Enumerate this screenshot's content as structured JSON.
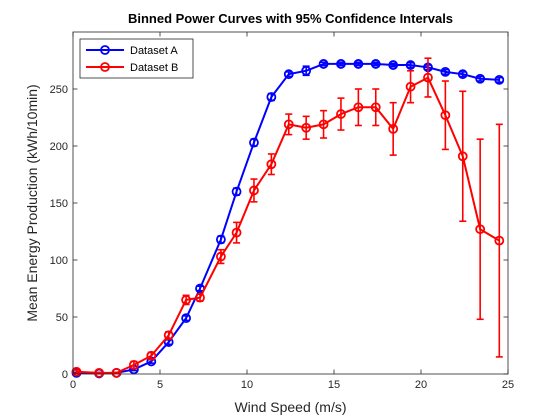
{
  "chart_data": {
    "type": "line",
    "title": "Binned Power Curves with 95% Confidence Intervals",
    "xlabel": "Wind Speed (m/s)",
    "ylabel": "Mean Energy Production (kWh/10min)",
    "xlim": [
      0,
      25
    ],
    "ylim": [
      0,
      300
    ],
    "xticks": [
      0,
      5,
      10,
      15,
      20,
      25
    ],
    "yticks": [
      0,
      50,
      100,
      150,
      200,
      250
    ],
    "grid": false,
    "legend_position": "top-left",
    "series": [
      {
        "name": "Dataset A",
        "color": "#0000ff",
        "x": [
          0.2,
          1.5,
          2.5,
          3.5,
          4.5,
          5.5,
          6.5,
          7.3,
          8.5,
          9.4,
          10.4,
          11.4,
          12.4,
          13.4,
          14.4,
          15.4,
          16.4,
          17.4,
          18.4,
          19.4,
          20.4,
          21.4,
          22.4,
          23.4,
          24.5
        ],
        "y": [
          1,
          0.5,
          1,
          4,
          11,
          28,
          49,
          75,
          118,
          160,
          203,
          243,
          263,
          266,
          272,
          272,
          272,
          272,
          271,
          271,
          269,
          265,
          263,
          259,
          258
        ],
        "err": [
          0.5,
          0.3,
          0.3,
          1,
          1.5,
          2,
          2,
          2,
          3,
          3,
          3,
          3,
          2,
          4,
          1.5,
          1.5,
          1.5,
          1.5,
          1.5,
          2,
          2,
          2,
          2,
          2,
          2
        ]
      },
      {
        "name": "Dataset B",
        "color": "#ff0000",
        "x": [
          0.2,
          1.5,
          2.5,
          3.5,
          4.5,
          5.5,
          6.5,
          7.3,
          8.5,
          9.4,
          10.4,
          11.4,
          12.4,
          13.4,
          14.4,
          15.4,
          16.4,
          17.4,
          18.4,
          19.4,
          20.4,
          21.4,
          22.4,
          23.4,
          24.5
        ],
        "y": [
          2,
          1,
          1,
          8,
          16,
          34,
          65,
          67,
          103,
          124,
          161,
          184,
          219,
          216,
          219,
          228,
          234,
          234,
          215,
          252,
          260,
          227,
          191,
          127,
          117
        ],
        "err": [
          1.5,
          0.5,
          0.5,
          3,
          3,
          3,
          4,
          3,
          6,
          9,
          10,
          9,
          9,
          10,
          12,
          14,
          16,
          16,
          23,
          14,
          17,
          30,
          57,
          79,
          102
        ]
      }
    ]
  }
}
